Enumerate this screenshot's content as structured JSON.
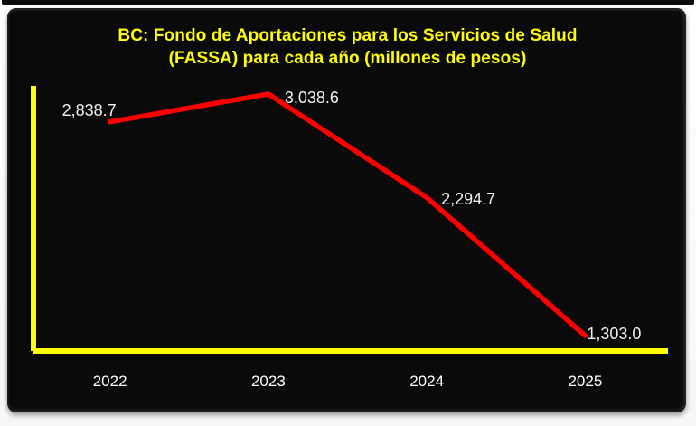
{
  "chart_data": {
    "type": "line",
    "title": "BC: Fondo de Aportaciones para los Servicios de Salud (FASSA) para cada año (millones de pesos)",
    "title_lines": [
      "BC: Fondo de Aportaciones para los Servicios de Salud",
      "(FASSA) para cada año (millones de pesos)"
    ],
    "categories": [
      "2022",
      "2023",
      "2024",
      "2025"
    ],
    "series": [
      {
        "name": "FASSA (millones de pesos)",
        "values": [
          2838.7,
          3038.6,
          2294.7,
          1303.0
        ],
        "value_labels": [
          "2,838.7",
          "3,038.6",
          "2,294.7",
          "1,303.0"
        ]
      }
    ],
    "xlabel": "",
    "ylabel": "",
    "ylim": [
      1193,
      3097
    ],
    "grid": false,
    "legend": false,
    "colors": {
      "page_background": "#f7f7f7",
      "chart_background": "#0a0a0a",
      "title": "#ffff00",
      "axis": "#ffff00",
      "line": "#ff0000",
      "data_labels": "#f2f2f2",
      "tick_labels": "#ffffff"
    }
  }
}
